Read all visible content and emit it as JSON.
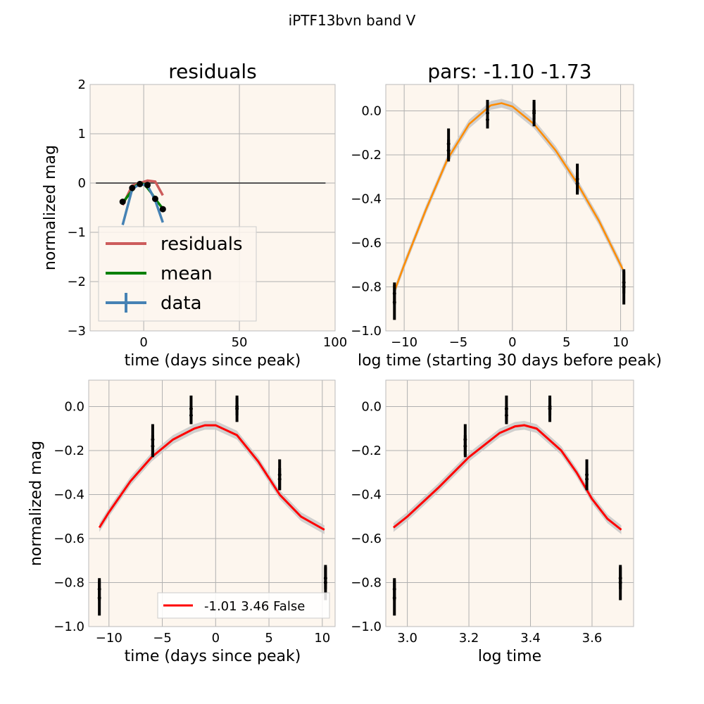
{
  "figure_title": "iPTF13bvn band V",
  "colors": {
    "plot_background": "#fdf6ee",
    "grid": "#b0b0b0",
    "residuals": "#cd5c5c",
    "mean": "#008000",
    "data": "#4682b4",
    "zero_line": "#555555",
    "orange_fit": "#ff8c00",
    "red_fit": "#ff0000",
    "band": "#c8c8c8",
    "points": "#000000"
  },
  "chart_data": [
    {
      "type": "line",
      "title": "residuals",
      "xlabel": "time (days since peak)",
      "ylabel": "normalized mag",
      "xlim": [
        -28,
        100
      ],
      "ylim": [
        -3,
        2
      ],
      "xticks": [
        0,
        50,
        100
      ],
      "yticks": [
        -3,
        -2,
        -1,
        0,
        1,
        2
      ],
      "grid": true,
      "legend": "lower-left",
      "legend_entries": [
        "residuals",
        "mean",
        "data"
      ],
      "zero_line": {
        "x": [
          -25,
          95
        ],
        "y": [
          0,
          0
        ]
      },
      "series": [
        {
          "name": "residuals",
          "x": [
            -11,
            -6,
            -2,
            2,
            6,
            10
          ],
          "y": [
            -0.45,
            -0.05,
            0.0,
            0.05,
            0.03,
            -0.25
          ]
        },
        {
          "name": "mean",
          "x": [
            -11,
            -8,
            -6,
            -4,
            -2,
            0,
            2,
            4,
            6,
            8,
            10
          ],
          "y": [
            -0.4,
            -0.25,
            -0.15,
            -0.05,
            0.0,
            -0.02,
            -0.1,
            -0.2,
            -0.32,
            -0.42,
            -0.52
          ]
        },
        {
          "name": "data",
          "x": [
            -11,
            -6,
            -2,
            2,
            6,
            10
          ],
          "y": [
            -0.85,
            -0.12,
            -0.02,
            -0.05,
            -0.35,
            -0.8
          ]
        }
      ],
      "points": {
        "x": [
          -11,
          -6,
          -2,
          2,
          6,
          10
        ],
        "y": [
          -0.38,
          -0.1,
          -0.02,
          -0.04,
          -0.32,
          -0.53
        ]
      }
    },
    {
      "type": "line",
      "title": "pars: -1.10 -1.73",
      "xlabel": "log time (starting 30 days before peak)",
      "ylabel": "",
      "xlim": [
        -11.7,
        11.2
      ],
      "ylim": [
        -1.0,
        0.12
      ],
      "xticks": [
        -10,
        -5,
        0,
        5,
        10
      ],
      "xtick_labels": [
        "−10",
        "−5",
        "0",
        "5",
        "10"
      ],
      "yticks": [
        -1.0,
        -0.8,
        -0.6,
        -0.4,
        -0.2,
        0.0
      ],
      "ytick_labels": [
        "−1.0",
        "−0.8",
        "−0.6",
        "−0.4",
        "−0.2",
        "0.0"
      ],
      "grid": true,
      "fit": {
        "x": [
          -10.9,
          -10,
          -8,
          -6,
          -4,
          -2,
          -1,
          0,
          2,
          4,
          6,
          8,
          10.2
        ],
        "y": [
          -0.82,
          -0.7,
          -0.45,
          -0.22,
          -0.06,
          0.025,
          0.035,
          0.02,
          -0.06,
          -0.18,
          -0.33,
          -0.5,
          -0.72
        ],
        "band": 0.02
      },
      "points": [
        {
          "x": -10.9,
          "y": -0.87,
          "err": 0.08
        },
        {
          "x": -10.9,
          "y": -0.83,
          "err": 0.05
        },
        {
          "x": -5.9,
          "y": -0.15,
          "err": 0.07
        },
        {
          "x": -5.9,
          "y": -0.18,
          "err": 0.05
        },
        {
          "x": -2.3,
          "y": -0.01,
          "err": 0.06
        },
        {
          "x": -2.3,
          "y": -0.04,
          "err": 0.04
        },
        {
          "x": 2.0,
          "y": -0.01,
          "err": 0.06
        },
        {
          "x": 2.0,
          "y": 0.0,
          "err": 0.04
        },
        {
          "x": 6.0,
          "y": -0.31,
          "err": 0.07
        },
        {
          "x": 6.0,
          "y": -0.33,
          "err": 0.05
        },
        {
          "x": 10.3,
          "y": -0.8,
          "err": 0.08
        },
        {
          "x": 10.3,
          "y": -0.78,
          "err": 0.05
        }
      ]
    },
    {
      "type": "line",
      "title": "",
      "xlabel": "time (days since peak)",
      "ylabel": "normalized mag",
      "xlim": [
        -11.9,
        11.2
      ],
      "ylim": [
        -1.0,
        0.12
      ],
      "xticks": [
        -10,
        -5,
        0,
        5,
        10
      ],
      "xtick_labels": [
        "−10",
        "−5",
        "0",
        "5",
        "10"
      ],
      "yticks": [
        -1.0,
        -0.8,
        -0.6,
        -0.4,
        -0.2,
        0.0
      ],
      "ytick_labels": [
        "−1.0",
        "−0.8",
        "−0.6",
        "−0.4",
        "−0.2",
        "0.0"
      ],
      "grid": true,
      "legend": "lower-right",
      "legend_entries": [
        "-1.01 3.46 False"
      ],
      "fit": {
        "x": [
          -10.9,
          -10,
          -8,
          -6,
          -4,
          -2,
          -1,
          0,
          2,
          4,
          6,
          8,
          10.2
        ],
        "y": [
          -0.55,
          -0.48,
          -0.34,
          -0.23,
          -0.15,
          -0.1,
          -0.085,
          -0.085,
          -0.13,
          -0.25,
          -0.4,
          -0.5,
          -0.56
        ],
        "band": 0.02
      },
      "points": [
        {
          "x": -10.9,
          "y": -0.87,
          "err": 0.08
        },
        {
          "x": -10.9,
          "y": -0.83,
          "err": 0.05
        },
        {
          "x": -5.9,
          "y": -0.15,
          "err": 0.07
        },
        {
          "x": -5.9,
          "y": -0.18,
          "err": 0.05
        },
        {
          "x": -2.3,
          "y": -0.01,
          "err": 0.06
        },
        {
          "x": -2.3,
          "y": -0.04,
          "err": 0.04
        },
        {
          "x": 2.0,
          "y": -0.01,
          "err": 0.06
        },
        {
          "x": 2.0,
          "y": 0.0,
          "err": 0.04
        },
        {
          "x": 6.0,
          "y": -0.31,
          "err": 0.07
        },
        {
          "x": 6.0,
          "y": -0.33,
          "err": 0.05
        },
        {
          "x": 10.3,
          "y": -0.8,
          "err": 0.08
        },
        {
          "x": 10.3,
          "y": -0.78,
          "err": 0.05
        }
      ]
    },
    {
      "type": "line",
      "title": "",
      "xlabel": "log time",
      "ylabel": "",
      "xlim": [
        2.93,
        3.735
      ],
      "ylim": [
        -1.0,
        0.12
      ],
      "xticks": [
        3.0,
        3.2,
        3.4,
        3.6
      ],
      "xtick_labels": [
        "3.0",
        "3.2",
        "3.4",
        "3.6"
      ],
      "yticks": [
        -1.0,
        -0.8,
        -0.6,
        -0.4,
        -0.2,
        0.0
      ],
      "ytick_labels": [
        "−1.0",
        "−0.8",
        "−0.6",
        "−0.4",
        "−0.2",
        "0.0"
      ],
      "grid": true,
      "fit": {
        "x": [
          2.955,
          3.0,
          3.1,
          3.2,
          3.3,
          3.35,
          3.38,
          3.42,
          3.5,
          3.55,
          3.6,
          3.65,
          3.695
        ],
        "y": [
          -0.55,
          -0.5,
          -0.37,
          -0.23,
          -0.12,
          -0.09,
          -0.085,
          -0.1,
          -0.2,
          -0.3,
          -0.42,
          -0.51,
          -0.56
        ],
        "band": 0.02
      },
      "points": [
        {
          "x": 2.958,
          "y": -0.87,
          "err": 0.08
        },
        {
          "x": 2.958,
          "y": -0.83,
          "err": 0.05
        },
        {
          "x": 3.188,
          "y": -0.15,
          "err": 0.07
        },
        {
          "x": 3.188,
          "y": -0.18,
          "err": 0.05
        },
        {
          "x": 3.322,
          "y": -0.01,
          "err": 0.06
        },
        {
          "x": 3.322,
          "y": -0.04,
          "err": 0.04
        },
        {
          "x": 3.463,
          "y": -0.01,
          "err": 0.06
        },
        {
          "x": 3.463,
          "y": 0.0,
          "err": 0.04
        },
        {
          "x": 3.583,
          "y": -0.31,
          "err": 0.07
        },
        {
          "x": 3.583,
          "y": -0.33,
          "err": 0.05
        },
        {
          "x": 3.692,
          "y": -0.8,
          "err": 0.08
        },
        {
          "x": 3.692,
          "y": -0.78,
          "err": 0.05
        }
      ]
    }
  ]
}
